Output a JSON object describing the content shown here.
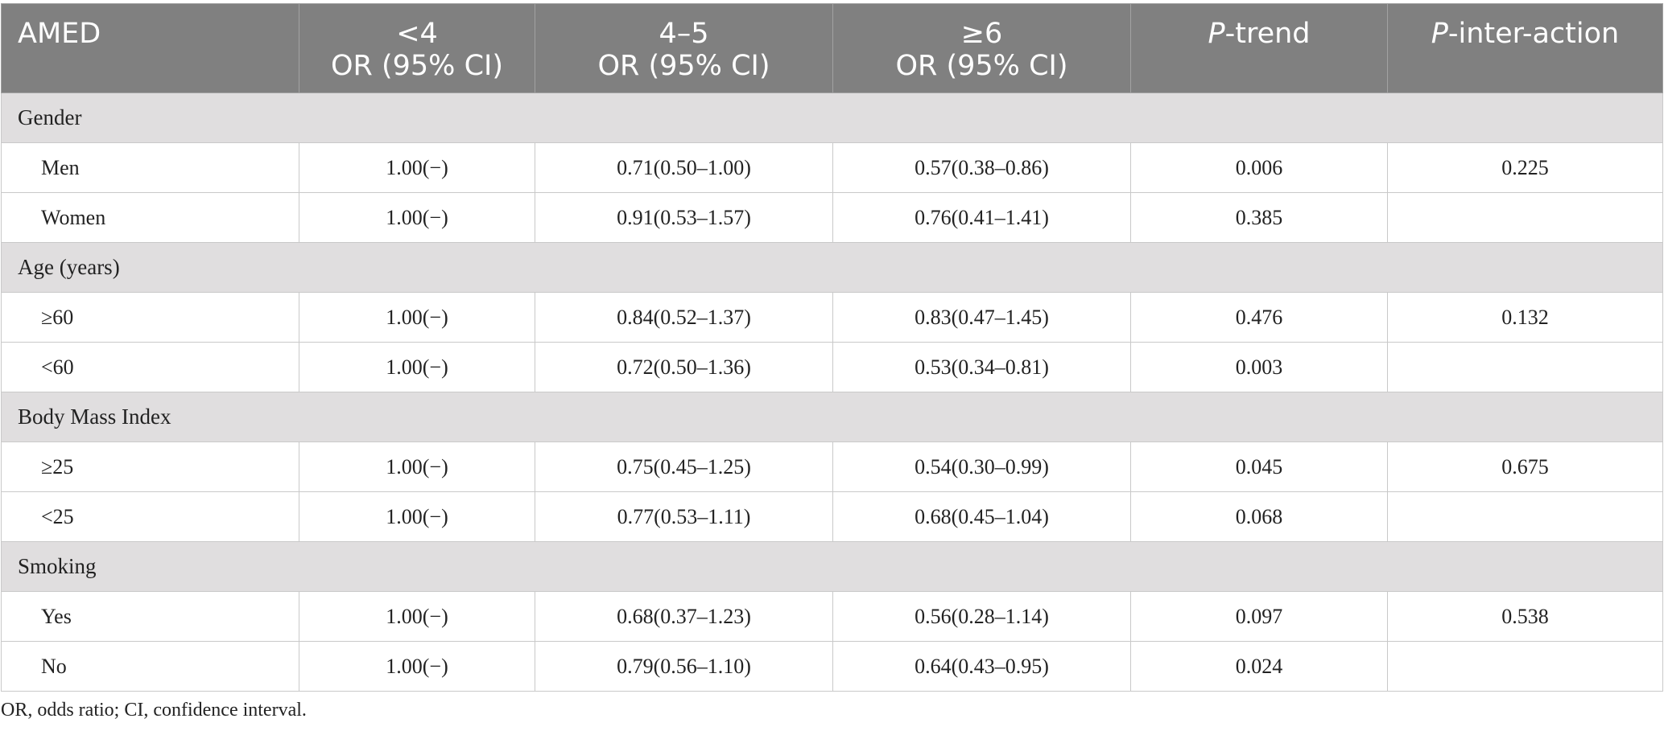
{
  "header": {
    "col0": "AMED",
    "col1_line1": "<4",
    "col1_line2": "OR (95% CI)",
    "col2_line1": "4–5",
    "col2_line2": "OR (95% CI)",
    "col3_line1": "≥6",
    "col3_line2": "OR (95% CI)",
    "col4_italic": "P",
    "col4_rest": "-trend",
    "col5_italic": "P",
    "col5_rest": "-inter-action"
  },
  "groups": [
    {
      "title": "Gender",
      "rows": [
        {
          "label": "Men",
          "c1": "1.00(−)",
          "c2": "0.71(0.50–1.00)",
          "c3": "0.57(0.38–0.86)",
          "trend": "0.006",
          "interaction": "0.225"
        },
        {
          "label": "Women",
          "c1": "1.00(−)",
          "c2": "0.91(0.53–1.57)",
          "c3": "0.76(0.41–1.41)",
          "trend": "0.385",
          "interaction": ""
        }
      ]
    },
    {
      "title": "Age (years)",
      "rows": [
        {
          "label": "≥60",
          "c1": "1.00(−)",
          "c2": "0.84(0.52–1.37)",
          "c3": "0.83(0.47–1.45)",
          "trend": "0.476",
          "interaction": "0.132"
        },
        {
          "label": "<60",
          "c1": "1.00(−)",
          "c2": "0.72(0.50–1.36)",
          "c3": "0.53(0.34–0.81)",
          "trend": "0.003",
          "interaction": ""
        }
      ]
    },
    {
      "title": "Body Mass Index",
      "rows": [
        {
          "label": "≥25",
          "c1": "1.00(−)",
          "c2": "0.75(0.45–1.25)",
          "c3": "0.54(0.30–0.99)",
          "trend": "0.045",
          "interaction": "0.675"
        },
        {
          "label": "<25",
          "c1": "1.00(−)",
          "c2": "0.77(0.53–1.11)",
          "c3": "0.68(0.45–1.04)",
          "trend": "0.068",
          "interaction": ""
        }
      ]
    },
    {
      "title": "Smoking",
      "rows": [
        {
          "label": "Yes",
          "c1": "1.00(−)",
          "c2": "0.68(0.37–1.23)",
          "c3": "0.56(0.28–1.14)",
          "trend": "0.097",
          "interaction": "0.538"
        },
        {
          "label": "No",
          "c1": "1.00(−)",
          "c2": "0.79(0.56–1.10)",
          "c3": "0.64(0.43–0.95)",
          "trend": "0.024",
          "interaction": ""
        }
      ]
    }
  ],
  "footnote": "OR, odds ratio; CI, confidence interval."
}
